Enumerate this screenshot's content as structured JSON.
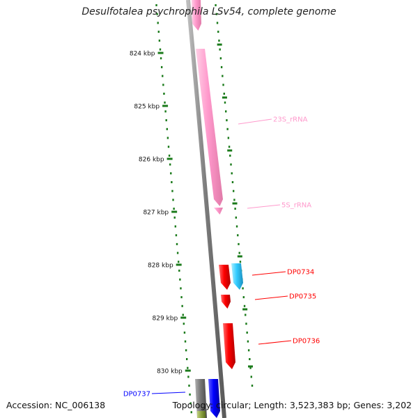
{
  "title": "Desulfotalea psychrophila LSv54, complete genome",
  "footer": {
    "accession_label": "Accession:",
    "accession": "NC_006138",
    "topology_label": "Topology:",
    "topology": "circular;",
    "length_label": "Length:",
    "length": "3,523,383 bp;",
    "genes_label": "Genes:",
    "genes": "3,202"
  },
  "scale_labels": [
    "824 kbp",
    "825 kbp",
    "826 kbp",
    "827 kbp",
    "828 kbp",
    "829 kbp",
    "830 kbp"
  ],
  "features": [
    {
      "name": "23S_rRNA",
      "type": "rRNA",
      "color": "#ff99cc"
    },
    {
      "name": "5S_rRNA",
      "type": "rRNA",
      "color": "#ff99cc"
    },
    {
      "name": "DP0734",
      "type": "CDS",
      "color": "#ff0000"
    },
    {
      "name": "DP0735",
      "type": "CDS",
      "color": "#ff0000"
    },
    {
      "name": "DP0736",
      "type": "CDS",
      "color": "#ff0000"
    },
    {
      "name": "DP0737",
      "type": "CDS",
      "color": "#0000ff"
    }
  ],
  "colors": {
    "backbone": "#808080",
    "ticks": "#1a7a1a",
    "rrna": "#ff99cc",
    "cds_red": "#ff0000",
    "cds_cyan": "#33ccff",
    "cds_blue": "#0000ff",
    "gene_gray": "#777777",
    "gene_olive": "#8aa040"
  }
}
